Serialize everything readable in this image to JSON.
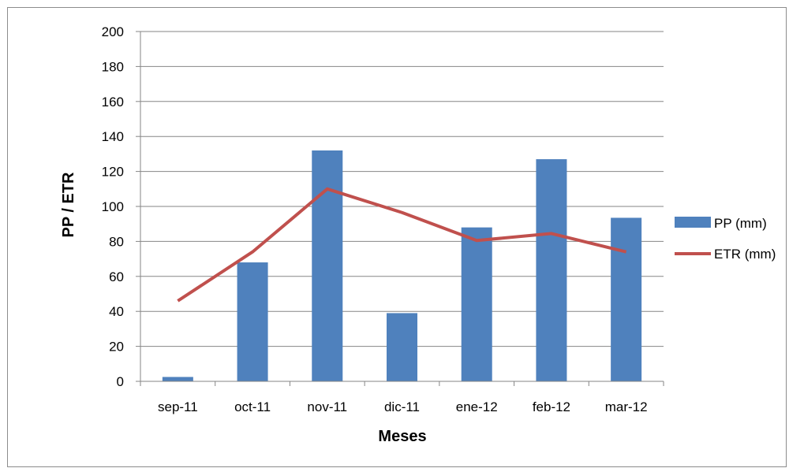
{
  "chart_data": {
    "type": "bar",
    "title": "",
    "xlabel": "Meses",
    "ylabel": "PP / ETR",
    "ylim": [
      0,
      200
    ],
    "ytick_step": 20,
    "grid": true,
    "legend_position": "right",
    "categories": [
      "sep-11",
      "oct-11",
      "nov-11",
      "dic-11",
      "ene-12",
      "feb-12",
      "mar-12"
    ],
    "series": [
      {
        "name": "PP (mm)",
        "kind": "bar",
        "color": "#4f81bd",
        "values": [
          2.5,
          68,
          132,
          39,
          88,
          127,
          93.5
        ]
      },
      {
        "name": "ETR (mm)",
        "kind": "line",
        "color": "#c0504d",
        "values": [
          46,
          74,
          110,
          96.5,
          80.5,
          84.5,
          74
        ]
      }
    ]
  }
}
